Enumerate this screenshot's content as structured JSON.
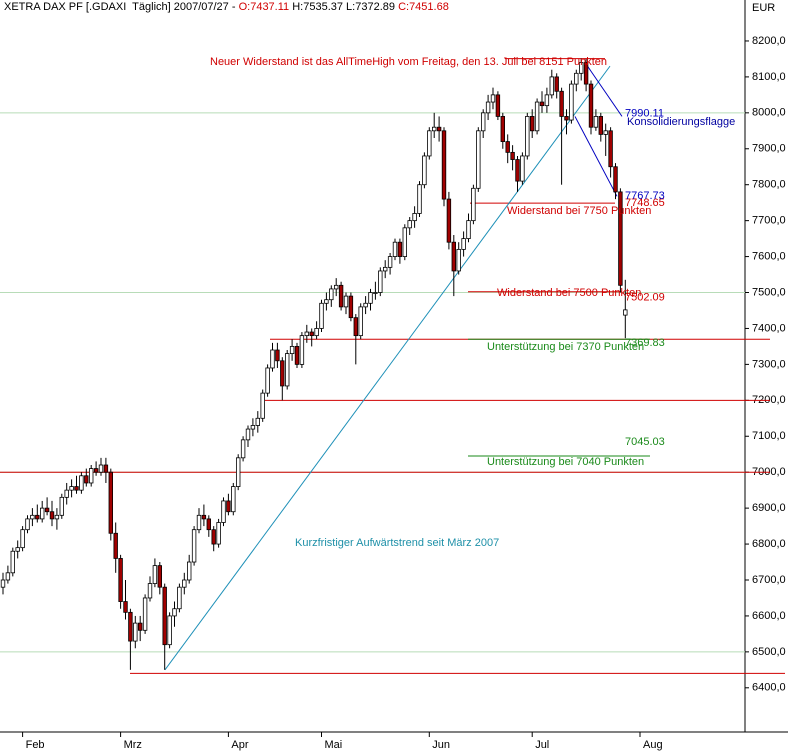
{
  "chart_data": {
    "type": "candlestick",
    "title": "XETRA DAX PF [.GDAXI  Täglich] 2007/07/27 -",
    "ohlc_labels": [
      "O:",
      "H:",
      "L:",
      "C:"
    ],
    "y_unit": "EUR",
    "up_color": "#ffffff",
    "down_color": "#a00000",
    "categories": [
      null,
      null,
      null,
      null,
      "Feb",
      null,
      null,
      null,
      null,
      null,
      null,
      null,
      null,
      null,
      null,
      null,
      null,
      null,
      null,
      null,
      null,
      null,
      null,
      null,
      "Mrz",
      null,
      null,
      null,
      null,
      null,
      null,
      null,
      null,
      null,
      null,
      null,
      null,
      null,
      null,
      null,
      null,
      null,
      null,
      null,
      null,
      null,
      "Apr",
      null,
      null,
      null,
      null,
      null,
      null,
      null,
      null,
      null,
      null,
      null,
      null,
      null,
      null,
      null,
      null,
      null,
      null,
      "Mai",
      null,
      null,
      null,
      null,
      null,
      null,
      null,
      null,
      null,
      null,
      null,
      null,
      null,
      null,
      null,
      null,
      null,
      null,
      null,
      null,
      null,
      "Jun",
      null,
      null,
      null,
      null,
      null,
      null,
      null,
      null,
      null,
      null,
      null,
      null,
      null,
      null,
      null,
      null,
      null,
      null,
      null,
      null,
      "Jul",
      null,
      null,
      null,
      null,
      null,
      null,
      null,
      null,
      null,
      null,
      null,
      null,
      null,
      null,
      null,
      null,
      null,
      null,
      null,
      null,
      null,
      "Aug"
    ],
    "ohlc": [
      [
        6680,
        6720,
        6660,
        6700
      ],
      [
        6700,
        6740,
        6690,
        6720
      ],
      [
        6720,
        6790,
        6710,
        6780
      ],
      [
        6780,
        6810,
        6760,
        6790
      ],
      [
        6790,
        6850,
        6780,
        6840
      ],
      [
        6840,
        6880,
        6830,
        6870
      ],
      [
        6870,
        6900,
        6850,
        6880
      ],
      [
        6880,
        6910,
        6860,
        6870
      ],
      [
        6870,
        6920,
        6860,
        6900
      ],
      [
        6900,
        6930,
        6880,
        6890
      ],
      [
        6890,
        6920,
        6850,
        6870
      ],
      [
        6870,
        6900,
        6840,
        6880
      ],
      [
        6880,
        6940,
        6870,
        6930
      ],
      [
        6930,
        6970,
        6910,
        6950
      ],
      [
        6950,
        6980,
        6930,
        6960
      ],
      [
        6960,
        6990,
        6940,
        6950
      ],
      [
        6950,
        7000,
        6940,
        6990
      ],
      [
        6990,
        7010,
        6960,
        6970
      ],
      [
        6970,
        7020,
        6960,
        7010
      ],
      [
        7010,
        7030,
        6990,
        7000
      ],
      [
        7000,
        7040,
        6990,
        7020
      ],
      [
        7020,
        7040,
        6970,
        7000
      ],
      [
        7000,
        7010,
        6810,
        6830
      ],
      [
        6830,
        6860,
        6720,
        6760
      ],
      [
        6760,
        6770,
        6620,
        6640
      ],
      [
        6640,
        6700,
        6590,
        6610
      ],
      [
        6610,
        6620,
        6450,
        6530
      ],
      [
        6530,
        6600,
        6510,
        6580
      ],
      [
        6580,
        6600,
        6530,
        6560
      ],
      [
        6560,
        6660,
        6550,
        6650
      ],
      [
        6650,
        6710,
        6640,
        6690
      ],
      [
        6690,
        6760,
        6680,
        6740
      ],
      [
        6740,
        6750,
        6660,
        6680
      ],
      [
        6680,
        6690,
        6450,
        6520
      ],
      [
        6520,
        6610,
        6510,
        6600
      ],
      [
        6600,
        6640,
        6570,
        6620
      ],
      [
        6620,
        6690,
        6610,
        6680
      ],
      [
        6680,
        6720,
        6660,
        6700
      ],
      [
        6700,
        6770,
        6690,
        6750
      ],
      [
        6750,
        6850,
        6740,
        6840
      ],
      [
        6840,
        6900,
        6830,
        6880
      ],
      [
        6880,
        6910,
        6850,
        6870
      ],
      [
        6870,
        6880,
        6820,
        6840
      ],
      [
        6840,
        6850,
        6780,
        6800
      ],
      [
        6800,
        6870,
        6790,
        6860
      ],
      [
        6860,
        6930,
        6850,
        6920
      ],
      [
        6920,
        6940,
        6880,
        6890
      ],
      [
        6890,
        6970,
        6880,
        6960
      ],
      [
        6960,
        7050,
        6950,
        7040
      ],
      [
        7040,
        7100,
        7030,
        7090
      ],
      [
        7090,
        7130,
        7070,
        7120
      ],
      [
        7120,
        7150,
        7100,
        7130
      ],
      [
        7130,
        7170,
        7110,
        7150
      ],
      [
        7150,
        7230,
        7140,
        7220
      ],
      [
        7220,
        7300,
        7210,
        7290
      ],
      [
        7290,
        7360,
        7280,
        7340
      ],
      [
        7340,
        7360,
        7290,
        7310
      ],
      [
        7310,
        7320,
        7200,
        7240
      ],
      [
        7240,
        7340,
        7230,
        7330
      ],
      [
        7330,
        7370,
        7310,
        7350
      ],
      [
        7350,
        7360,
        7290,
        7300
      ],
      [
        7300,
        7390,
        7290,
        7380
      ],
      [
        7380,
        7410,
        7360,
        7390
      ],
      [
        7390,
        7400,
        7350,
        7380
      ],
      [
        7380,
        7420,
        7370,
        7400
      ],
      [
        7400,
        7480,
        7390,
        7470
      ],
      [
        7470,
        7500,
        7450,
        7480
      ],
      [
        7480,
        7520,
        7460,
        7510
      ],
      [
        7510,
        7540,
        7490,
        7520
      ],
      [
        7520,
        7530,
        7450,
        7460
      ],
      [
        7460,
        7500,
        7440,
        7490
      ],
      [
        7490,
        7500,
        7420,
        7430
      ],
      [
        7430,
        7440,
        7300,
        7380
      ],
      [
        7380,
        7470,
        7370,
        7460
      ],
      [
        7460,
        7490,
        7440,
        7470
      ],
      [
        7470,
        7510,
        7450,
        7500
      ],
      [
        7500,
        7530,
        7480,
        7500
      ],
      [
        7500,
        7570,
        7490,
        7560
      ],
      [
        7560,
        7590,
        7540,
        7570
      ],
      [
        7570,
        7610,
        7550,
        7600
      ],
      [
        7600,
        7650,
        7590,
        7640
      ],
      [
        7640,
        7650,
        7580,
        7600
      ],
      [
        7600,
        7690,
        7590,
        7680
      ],
      [
        7680,
        7710,
        7660,
        7700
      ],
      [
        7700,
        7740,
        7680,
        7720
      ],
      [
        7720,
        7810,
        7710,
        7800
      ],
      [
        7800,
        7890,
        7790,
        7880
      ],
      [
        7880,
        7960,
        7870,
        7950
      ],
      [
        7950,
        8000,
        7930,
        7960
      ],
      [
        7960,
        7990,
        7920,
        7950
      ],
      [
        7950,
        7960,
        7740,
        7760
      ],
      [
        7760,
        7780,
        7620,
        7640
      ],
      [
        7640,
        7660,
        7490,
        7560
      ],
      [
        7560,
        7640,
        7550,
        7620
      ],
      [
        7620,
        7670,
        7600,
        7650
      ],
      [
        7650,
        7720,
        7640,
        7700
      ],
      [
        7700,
        7800,
        7690,
        7790
      ],
      [
        7790,
        7960,
        7780,
        7950
      ],
      [
        7950,
        8010,
        7930,
        8000
      ],
      [
        8000,
        8050,
        7980,
        8030
      ],
      [
        8030,
        8070,
        8010,
        8050
      ],
      [
        8050,
        8060,
        7980,
        7990
      ],
      [
        7990,
        8000,
        7900,
        7920
      ],
      [
        7920,
        7940,
        7860,
        7890
      ],
      [
        7890,
        7910,
        7840,
        7870
      ],
      [
        7870,
        7880,
        7780,
        7810
      ],
      [
        7810,
        7890,
        7800,
        7880
      ],
      [
        7880,
        8000,
        7870,
        7990
      ],
      [
        7990,
        8010,
        7930,
        7950
      ],
      [
        7950,
        8040,
        7940,
        8030
      ],
      [
        8030,
        8060,
        8000,
        8020
      ],
      [
        8020,
        8070,
        8000,
        8050
      ],
      [
        8050,
        8120,
        8040,
        8100
      ],
      [
        8100,
        8110,
        8040,
        8060
      ],
      [
        8060,
        8070,
        7800,
        7990
      ],
      [
        7990,
        8010,
        7940,
        7980
      ],
      [
        7980,
        8090,
        7970,
        8080
      ],
      [
        8080,
        8120,
        8060,
        8110
      ],
      [
        8110,
        8151,
        8090,
        8140
      ],
      [
        8140,
        8150,
        8060,
        8080
      ],
      [
        8080,
        8090,
        7940,
        7960
      ],
      [
        7960,
        8010,
        7950,
        7990
      ],
      [
        7990,
        8000,
        7920,
        7940
      ],
      [
        7940,
        7970,
        7880,
        7950
      ],
      [
        7950,
        7960,
        7820,
        7850
      ],
      [
        7850,
        7860,
        7760,
        7780
      ],
      [
        7780,
        7790,
        7500,
        7520
      ],
      [
        7437.11,
        7535.37,
        7372.89,
        7451.68
      ],
      null,
      null,
      null
    ],
    "ylim": [
      6277,
      8314
    ],
    "yticks": [
      {
        "value": 6400,
        "label": "6400,0"
      },
      {
        "value": 6500,
        "label": "6500,0"
      },
      {
        "value": 6600,
        "label": "6600,0"
      },
      {
        "value": 6700,
        "label": "6700,0"
      },
      {
        "value": 6800,
        "label": "6800,0"
      },
      {
        "value": 6900,
        "label": "6900,0"
      },
      {
        "value": 7000,
        "label": "7000,0"
      },
      {
        "value": 7100,
        "label": "7100,0"
      },
      {
        "value": 7200,
        "label": "7200,0"
      },
      {
        "value": 7300,
        "label": "7300,0"
      },
      {
        "value": 7400,
        "label": "7400,0"
      },
      {
        "value": 7500,
        "label": "7500,0"
      },
      {
        "value": 7600,
        "label": "7600,0"
      },
      {
        "value": 7700,
        "label": "7700,0"
      },
      {
        "value": 7800,
        "label": "7800,0"
      },
      {
        "value": 7900,
        "label": "7900,0"
      },
      {
        "value": 8000,
        "label": "8000,0"
      },
      {
        "value": 8100,
        "label": "8100,0"
      },
      {
        "value": 8200,
        "label": "8200,0"
      }
    ],
    "grid_values": [
      6500,
      7000,
      7500,
      8000
    ],
    "grid_color": "#b8dcb8",
    "levels": [
      {
        "value": 8151,
        "color": "#d00000"
      },
      {
        "value": 7748.65,
        "color": "#d00000"
      },
      {
        "value": 7502.09,
        "color": "#d00000"
      },
      {
        "value": 7369.83,
        "color": "#d00000"
      },
      {
        "value": 7369.83,
        "color": "#1a8a1a"
      },
      {
        "value": 7200,
        "color": "#d00000"
      },
      {
        "value": 7000,
        "color": "#d00000"
      },
      {
        "value": 6440,
        "color": "#d00000"
      },
      {
        "value": 7045.03,
        "color": "#1a8a1a"
      }
    ],
    "trend": {
      "start": 6450,
      "end": 8130,
      "color": "#1e90b8"
    },
    "flag": {
      "upper": [
        8140,
        7990.11
      ],
      "lower": [
        7990,
        7767.73
      ],
      "color": "#0000c0"
    },
    "annotations": [
      {
        "text": "Neuer Widerstand ist das AllTimeHigh vom Freitag, den 13. Juli bei 8151 Punkten",
        "color": "#d00000"
      },
      {
        "text": "Konsolidierungsflagge",
        "color": "#0000a0"
      },
      {
        "text": "Widerstand bei 7750 Punkten",
        "color": "#d00000"
      },
      {
        "text": "Widerstand bei 7500 Punkten",
        "color": "#d00000"
      },
      {
        "text": "Unterstützung bei 7370 Punkten",
        "color": "#1a8a1a"
      },
      {
        "text": "Unterstützung bei 7040 Punkten",
        "color": "#1a8a1a"
      },
      {
        "text": "Kurzfristiger Aufwärtstrend seit März 2007",
        "color": "#1e90a8"
      }
    ]
  }
}
